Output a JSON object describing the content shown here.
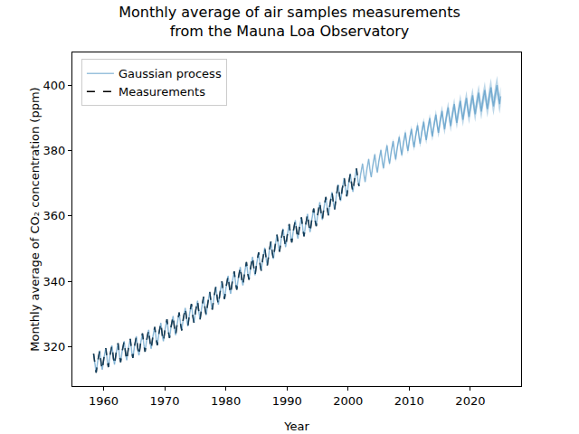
{
  "chart_data": {
    "type": "line",
    "title": "Monthly average of air samples measurements\nfrom the Mauna Loa Observatory",
    "x_label": "Year",
    "y_label": "Monthly average of CO₂ concentration (ppm)",
    "x": [
      1958.37,
      1958.62,
      1958.79,
      1959.04,
      1959.37,
      1959.62,
      1959.79,
      1960.04,
      1960.37,
      1960.62,
      1960.79,
      1961.04,
      1961.37,
      1961.62,
      1961.79,
      1962.04,
      1962.37,
      1962.62,
      1962.79,
      1963.04,
      1963.37,
      1963.62,
      1963.79,
      1964.04,
      1964.37,
      1964.62,
      1964.79,
      1965.04,
      1965.37,
      1965.62,
      1965.79,
      1966.04,
      1966.37,
      1966.62,
      1966.79,
      1967.04,
      1967.37,
      1967.62,
      1967.79,
      1968.04,
      1968.37,
      1968.62,
      1968.79,
      1969.04,
      1969.37,
      1969.62,
      1969.79,
      1970.04,
      1970.37,
      1970.62,
      1970.79,
      1971.04,
      1971.37,
      1971.62,
      1971.79,
      1972.04,
      1972.37,
      1972.62,
      1972.79,
      1973.04,
      1973.37,
      1973.62,
      1973.79,
      1974.04,
      1974.37,
      1974.62,
      1974.79,
      1975.04,
      1975.37,
      1975.62,
      1975.79,
      1976.04,
      1976.37,
      1976.62,
      1976.79,
      1977.04,
      1977.37,
      1977.62,
      1977.79,
      1978.04,
      1978.37,
      1978.62,
      1978.79,
      1979.04,
      1979.37,
      1979.62,
      1979.79,
      1980.04,
      1980.37,
      1980.62,
      1980.79,
      1981.04,
      1981.37,
      1981.62,
      1981.79,
      1982.04,
      1982.37,
      1982.62,
      1982.79,
      1983.04,
      1983.37,
      1983.62,
      1983.79,
      1984.04,
      1984.37,
      1984.62,
      1984.79,
      1985.04,
      1985.37,
      1985.62,
      1985.79,
      1986.04,
      1986.37,
      1986.62,
      1986.79,
      1987.04,
      1987.37,
      1987.62,
      1987.79,
      1988.04,
      1988.37,
      1988.62,
      1988.79,
      1989.04,
      1989.37,
      1989.62,
      1989.79,
      1990.04,
      1990.37,
      1990.62,
      1990.79,
      1991.04,
      1991.37,
      1991.62,
      1991.79,
      1992.04,
      1992.37,
      1992.62,
      1992.79,
      1993.04,
      1993.37,
      1993.62,
      1993.79,
      1994.04,
      1994.37,
      1994.62,
      1994.79,
      1995.04,
      1995.37,
      1995.62,
      1995.79,
      1996.04,
      1996.37,
      1996.62,
      1996.79,
      1997.04,
      1997.37,
      1997.62,
      1997.79,
      1998.04,
      1998.37,
      1998.62,
      1998.79,
      1999.04,
      1999.37,
      1999.62,
      1999.79,
      2000.04,
      2000.37,
      2000.62,
      2000.79,
      2001.04,
      2001.37,
      2001.62,
      2001.79,
      2002.04,
      2002.37,
      2002.62,
      2002.79,
      2003.04,
      2003.37,
      2003.62,
      2003.79,
      2004.04,
      2004.37,
      2004.62,
      2004.79,
      2005.04,
      2005.37,
      2005.62,
      2005.79,
      2006.04,
      2006.37,
      2006.62,
      2006.79,
      2007.04,
      2007.37,
      2007.62,
      2007.79,
      2008.04,
      2008.37,
      2008.62,
      2008.79,
      2009.04,
      2009.37,
      2009.62,
      2009.79,
      2010.04,
      2010.37,
      2010.62,
      2010.79,
      2011.04,
      2011.37,
      2011.62,
      2011.79,
      2012.04,
      2012.37,
      2012.62,
      2012.79,
      2013.04,
      2013.37,
      2013.62,
      2013.79,
      2014.04,
      2014.37,
      2014.62,
      2014.79,
      2015.04,
      2015.37,
      2015.62,
      2015.79,
      2016.04,
      2016.37,
      2016.62,
      2016.79,
      2017.04,
      2017.37,
      2017.62,
      2017.79,
      2018.04,
      2018.37,
      2018.62,
      2018.79,
      2019.04,
      2019.37,
      2019.62,
      2019.79,
      2020.04,
      2020.37,
      2020.62,
      2020.79,
      2021.04,
      2021.37,
      2021.62,
      2021.79,
      2022.04,
      2022.37,
      2022.62,
      2022.79,
      2023.04,
      2023.37,
      2023.62,
      2023.79,
      2024.04,
      2024.37,
      2024.62,
      2024.79,
      2024.96
    ],
    "series": [
      {
        "name": "Measurements",
        "color": "#000000",
        "line_style": "dashed",
        "values": [
          317.9,
          314.0,
          312.1,
          315.5,
          318.8,
          314.8,
          313.0,
          316.4,
          319.6,
          315.7,
          313.8,
          317.2,
          320.4,
          316.4,
          314.6,
          317.9,
          321.1,
          317.1,
          315.3,
          318.6,
          321.7,
          317.8,
          315.9,
          319.2,
          322.4,
          318.4,
          316.6,
          319.9,
          323.2,
          319.2,
          317.4,
          320.8,
          324.1,
          320.3,
          318.5,
          321.9,
          325.2,
          321.2,
          319.4,
          322.8,
          326.1,
          322.3,
          320.5,
          323.9,
          327.3,
          323.4,
          321.7,
          325.1,
          328.4,
          324.5,
          322.7,
          326.1,
          329.4,
          325.4,
          323.6,
          327.0,
          330.5,
          326.7,
          325.0,
          328.5,
          331.9,
          328.1,
          326.3,
          329.8,
          333.1,
          329.2,
          327.4,
          330.8,
          334.1,
          330.2,
          328.4,
          331.8,
          335.3,
          331.4,
          329.7,
          333.2,
          336.8,
          333.0,
          331.4,
          334.9,
          338.4,
          334.6,
          332.9,
          336.4,
          340.0,
          336.3,
          334.6,
          338.2,
          341.7,
          337.9,
          336.2,
          339.7,
          343.1,
          339.2,
          337.5,
          340.9,
          344.4,
          340.5,
          338.8,
          342.3,
          345.9,
          342.1,
          340.5,
          344.0,
          347.5,
          343.6,
          341.9,
          345.4,
          348.9,
          345.0,
          343.3,
          346.8,
          350.3,
          346.6,
          344.9,
          348.4,
          352.2,
          348.5,
          346.9,
          350.6,
          354.3,
          350.7,
          349.1,
          352.7,
          356.1,
          352.3,
          350.5,
          354.0,
          357.5,
          353.6,
          351.9,
          355.4,
          358.7,
          354.9,
          353.1,
          356.5,
          359.6,
          355.7,
          353.8,
          357.1,
          360.6,
          356.8,
          355.1,
          358.6,
          362.3,
          358.5,
          356.9,
          360.5,
          364.2,
          360.4,
          358.8,
          362.4,
          365.8,
          361.9,
          360.2,
          363.6,
          367.3,
          363.6,
          362.0,
          365.6,
          369.6,
          366.0,
          364.6,
          368.3,
          371.6,
          367.8,
          366.0,
          369.4,
          372.9,
          369.1,
          367.4,
          370.9,
          374.5,
          370.7,
          369.1,
          null,
          null,
          null,
          null,
          null,
          null,
          null,
          null,
          null,
          null,
          null,
          null,
          null,
          null,
          null,
          null,
          null,
          null,
          null,
          null,
          null,
          null,
          null,
          null,
          null,
          null,
          null,
          null,
          null,
          null,
          null,
          null,
          null,
          null,
          null,
          null,
          null,
          null,
          null,
          null,
          null,
          null,
          null,
          null,
          null,
          null,
          null,
          null,
          null,
          null,
          null,
          null,
          null,
          null,
          null,
          null,
          null,
          null,
          null,
          null,
          null,
          null,
          null,
          null,
          null,
          null,
          null,
          null,
          null,
          null,
          null,
          null,
          null,
          null,
          null,
          null,
          null,
          null,
          null,
          null,
          null,
          null,
          null,
          null,
          null,
          null,
          null,
          null,
          null,
          null,
          null,
          null,
          null
        ]
      },
      {
        "name": "Gaussian process",
        "color": "#1f77b4",
        "line_style": "solid",
        "values": [
          317.9,
          314.0,
          312.1,
          315.5,
          318.8,
          314.8,
          313.0,
          316.4,
          319.6,
          315.7,
          313.8,
          317.2,
          320.4,
          316.4,
          314.6,
          317.9,
          321.1,
          317.1,
          315.3,
          318.6,
          321.7,
          317.8,
          315.9,
          319.2,
          322.4,
          318.4,
          316.6,
          319.9,
          323.2,
          319.2,
          317.4,
          320.8,
          324.1,
          320.3,
          318.5,
          321.9,
          325.2,
          321.2,
          319.4,
          322.8,
          326.1,
          322.3,
          320.5,
          323.9,
          327.3,
          323.4,
          321.7,
          325.1,
          328.4,
          324.5,
          322.7,
          326.1,
          329.4,
          325.4,
          323.6,
          327.0,
          330.5,
          326.7,
          325.0,
          328.5,
          331.9,
          328.1,
          326.3,
          329.8,
          333.1,
          329.2,
          327.4,
          330.8,
          334.1,
          330.2,
          328.4,
          331.8,
          335.3,
          331.4,
          329.7,
          333.2,
          336.8,
          333.0,
          331.4,
          334.9,
          338.4,
          334.6,
          332.9,
          336.4,
          340.0,
          336.3,
          334.6,
          338.2,
          341.7,
          337.9,
          336.2,
          339.7,
          343.1,
          339.2,
          337.5,
          340.9,
          344.4,
          340.5,
          338.8,
          342.3,
          345.9,
          342.1,
          340.5,
          344.0,
          347.5,
          343.6,
          341.9,
          345.4,
          348.9,
          345.0,
          343.3,
          346.8,
          350.3,
          346.6,
          344.9,
          348.4,
          352.2,
          348.5,
          346.9,
          350.6,
          354.3,
          350.7,
          349.1,
          352.7,
          356.1,
          352.3,
          350.5,
          354.0,
          357.5,
          353.6,
          351.9,
          355.4,
          358.7,
          354.9,
          353.1,
          356.5,
          359.6,
          355.7,
          353.8,
          357.1,
          360.6,
          356.8,
          355.1,
          358.6,
          362.3,
          358.5,
          356.9,
          360.5,
          364.2,
          360.4,
          358.8,
          362.4,
          365.8,
          361.9,
          360.2,
          363.6,
          367.3,
          363.6,
          362.0,
          365.6,
          369.6,
          366.0,
          364.6,
          368.3,
          371.6,
          367.8,
          366.0,
          369.4,
          372.9,
          369.1,
          367.4,
          370.9,
          374.5,
          370.7,
          369.1,
          372.6,
          376.0,
          372.2,
          370.4,
          373.9,
          377.4,
          373.6,
          371.9,
          375.4,
          378.9,
          375.0,
          373.3,
          376.8,
          380.2,
          376.4,
          374.6,
          378.1,
          381.6,
          377.7,
          376.0,
          379.5,
          382.9,
          379.1,
          377.3,
          380.8,
          384.2,
          380.4,
          378.6,
          382.1,
          385.5,
          381.6,
          379.9,
          383.3,
          386.6,
          382.8,
          381.0,
          384.4,
          387.7,
          383.9,
          382.1,
          385.5,
          388.8,
          385.0,
          383.2,
          386.6,
          389.9,
          386.1,
          384.3,
          387.7,
          391.0,
          387.2,
          385.4,
          388.8,
          392.1,
          388.3,
          386.5,
          389.9,
          393.2,
          389.3,
          387.5,
          390.9,
          394.2,
          390.3,
          388.5,
          391.9,
          395.2,
          391.2,
          389.4,
          392.8,
          396.1,
          392.1,
          390.3,
          393.7,
          396.9,
          393.0,
          391.1,
          394.5,
          397.7,
          393.8,
          391.9,
          395.3,
          398.5,
          394.6,
          392.7,
          396.1,
          399.3,
          395.3,
          393.5,
          396.8,
          400.0,
          396.0,
          394.2,
          396.6
        ],
        "std": [
          0.3,
          0.3,
          0.3,
          0.3,
          0.3,
          0.3,
          0.3,
          0.3,
          0.3,
          0.3,
          0.3,
          0.3,
          0.3,
          0.3,
          0.3,
          0.3,
          0.3,
          0.3,
          0.3,
          0.3,
          0.3,
          0.3,
          0.3,
          0.3,
          0.3,
          0.3,
          0.3,
          0.3,
          0.3,
          0.3,
          0.3,
          0.3,
          0.3,
          0.3,
          0.3,
          0.3,
          0.3,
          0.3,
          0.3,
          0.3,
          0.3,
          0.3,
          0.3,
          0.3,
          0.3,
          0.3,
          0.3,
          0.3,
          0.3,
          0.3,
          0.3,
          0.3,
          0.3,
          0.3,
          0.3,
          0.3,
          0.3,
          0.3,
          0.3,
          0.3,
          0.3,
          0.3,
          0.3,
          0.3,
          0.3,
          0.3,
          0.3,
          0.3,
          0.3,
          0.3,
          0.3,
          0.3,
          0.3,
          0.3,
          0.3,
          0.3,
          0.3,
          0.3,
          0.3,
          0.3,
          0.3,
          0.3,
          0.3,
          0.3,
          0.3,
          0.3,
          0.3,
          0.3,
          0.3,
          0.3,
          0.3,
          0.3,
          0.3,
          0.3,
          0.3,
          0.3,
          0.3,
          0.3,
          0.3,
          0.3,
          0.3,
          0.3,
          0.3,
          0.3,
          0.3,
          0.3,
          0.3,
          0.3,
          0.3,
          0.3,
          0.3,
          0.3,
          0.3,
          0.3,
          0.3,
          0.3,
          0.3,
          0.3,
          0.3,
          0.3,
          0.3,
          0.3,
          0.3,
          0.3,
          0.3,
          0.3,
          0.3,
          0.3,
          0.3,
          0.3,
          0.3,
          0.3,
          0.3,
          0.3,
          0.3,
          0.3,
          0.3,
          0.3,
          0.3,
          0.3,
          0.3,
          0.3,
          0.3,
          0.3,
          0.3,
          0.3,
          0.3,
          0.3,
          0.3,
          0.3,
          0.3,
          0.3,
          0.3,
          0.3,
          0.3,
          0.3,
          0.3,
          0.3,
          0.3,
          0.3,
          0.3,
          0.3,
          0.3,
          0.3,
          0.3,
          0.3,
          0.3,
          0.3,
          0.3,
          0.3,
          0.3,
          0.3,
          0.3,
          0.3,
          0.3,
          0.3,
          0.3,
          0.3,
          0.3,
          0.4,
          0.4,
          0.4,
          0.4,
          0.5,
          0.5,
          0.5,
          0.5,
          0.6,
          0.6,
          0.6,
          0.6,
          0.7,
          0.7,
          0.7,
          0.7,
          0.8,
          0.8,
          0.8,
          0.8,
          0.9,
          0.9,
          0.9,
          0.9,
          1.0,
          1.0,
          1.0,
          1.0,
          1.1,
          1.1,
          1.1,
          1.1,
          1.2,
          1.2,
          1.2,
          1.2,
          1.3,
          1.3,
          1.3,
          1.3,
          1.4,
          1.4,
          1.4,
          1.4,
          1.5,
          1.5,
          1.5,
          1.5,
          1.7,
          1.7,
          1.7,
          1.7,
          1.8,
          1.8,
          1.8,
          1.8,
          1.9,
          1.9,
          1.9,
          1.9,
          2.1,
          2.1,
          2.1,
          2.1,
          2.2,
          2.2,
          2.2,
          2.2,
          2.4,
          2.4,
          2.4,
          2.4,
          2.5,
          2.5,
          2.5,
          2.5,
          2.6,
          2.6,
          2.6,
          2.6,
          2.8,
          2.8,
          2.8,
          2.8,
          2.9,
          2.9,
          2.9,
          2.9,
          3.0
        ]
      }
    ],
    "xlim": [
      1954.9,
      2028.3
    ],
    "ylim": [
      308,
      410
    ],
    "xticks": [
      1960,
      1970,
      1980,
      1990,
      2000,
      2010,
      2020
    ],
    "yticks": [
      320,
      340,
      360,
      380,
      400
    ],
    "grid": false,
    "legend": "upper left"
  }
}
